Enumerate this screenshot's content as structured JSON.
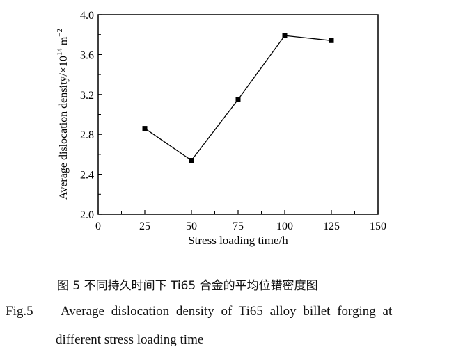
{
  "chart_data": {
    "type": "line",
    "x": [
      25,
      50,
      75,
      100,
      125
    ],
    "values": [
      2.86,
      2.54,
      3.15,
      3.79,
      3.74
    ],
    "xlabel": "Stress loading time/h",
    "ylabel": "Average dislocation density/×10",
    "ylabel_exp": "14",
    "ylabel_unit": "m",
    "ylabel_unit_exp": "−2",
    "xlim": [
      0,
      150
    ],
    "ylim": [
      2.0,
      4.0
    ],
    "xticks": [
      "0",
      "25",
      "50",
      "75",
      "100",
      "125",
      "150"
    ],
    "yticks": [
      "2.0",
      "2.4",
      "2.8",
      "3.2",
      "3.6",
      "4.0"
    ],
    "grid": false,
    "marker": "square",
    "color": "#000000"
  },
  "caption": {
    "cn": "图 5  不同持久时间下 Ti65 合金的平均位错密度图",
    "en_label": "Fig.5",
    "en_line1": "Average dislocation density of Ti65 alloy billet forging at",
    "en_line2": "different stress loading time"
  }
}
